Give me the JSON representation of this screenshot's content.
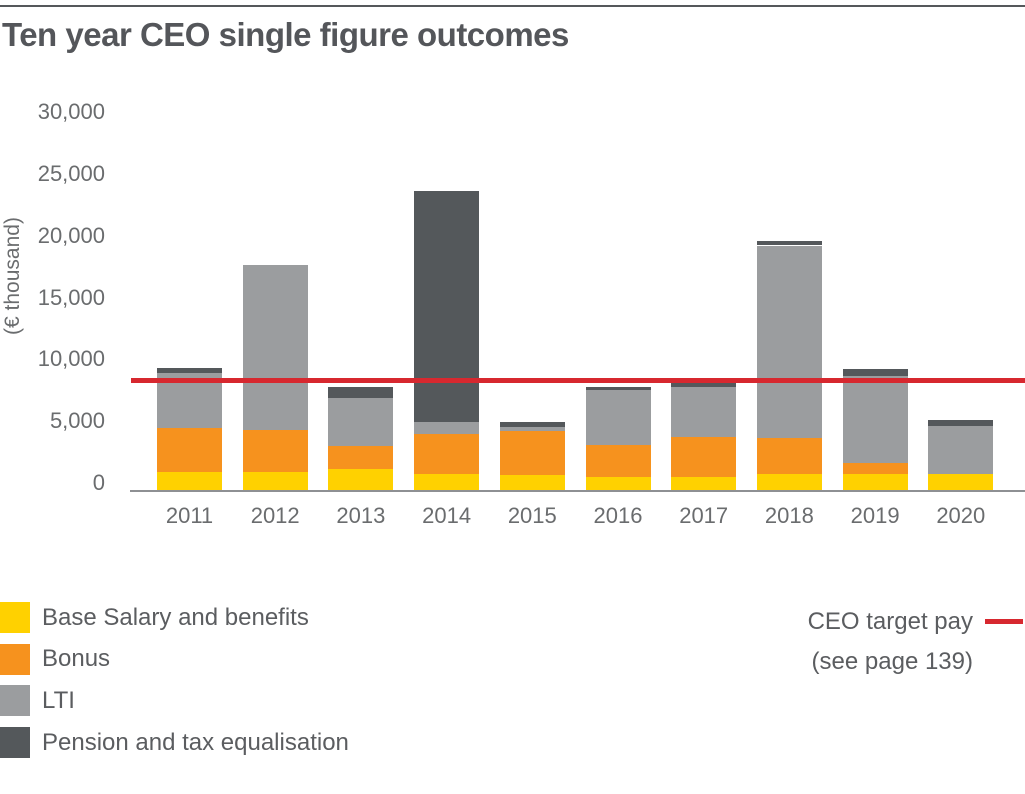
{
  "title": "Ten year CEO single figure outcomes",
  "chart_data": {
    "type": "bar",
    "stacked": true,
    "title": "Ten year CEO single figure outcomes",
    "xlabel": "",
    "ylabel": "(€ thousand)",
    "ylim": [
      0,
      30000
    ],
    "ytick_interval": 5000,
    "ytick_labels": [
      "0",
      "5,000",
      "10,000",
      "15,000",
      "20,000",
      "25,000",
      "30,000"
    ],
    "grid": false,
    "legend_position": "bottom-left",
    "categories": [
      "2011",
      "2012",
      "2013",
      "2014",
      "2015",
      "2016",
      "2017",
      "2018",
      "2019",
      "2020"
    ],
    "series": [
      {
        "name": "Base Salary and benefits",
        "color": "#FFD100",
        "values": [
          1550,
          1550,
          1800,
          1400,
          1300,
          1150,
          1150,
          1350,
          1400,
          1350
        ]
      },
      {
        "name": "Bonus",
        "color": "#F6921E",
        "values": [
          3550,
          3400,
          1850,
          3200,
          3550,
          2550,
          3250,
          2950,
          900,
          0
        ]
      },
      {
        "name": "LTI",
        "color": "#9B9D9F",
        "values": [
          4450,
          13300,
          3900,
          950,
          300,
          4450,
          4000,
          15550,
          7000,
          3900
        ]
      },
      {
        "name": "Pension and tax equalisation",
        "color": "#54585B",
        "values": [
          400,
          0,
          900,
          18700,
          400,
          300,
          300,
          400,
          600,
          500
        ]
      }
    ],
    "totals": [
      9950,
      18250,
      8450,
      24250,
      5550,
      8450,
      8700,
      20250,
      9900,
      5750
    ],
    "reference_line": {
      "label": "CEO target pay",
      "note": "(see page 139)",
      "value": 8900,
      "color": "#D7282F"
    }
  }
}
